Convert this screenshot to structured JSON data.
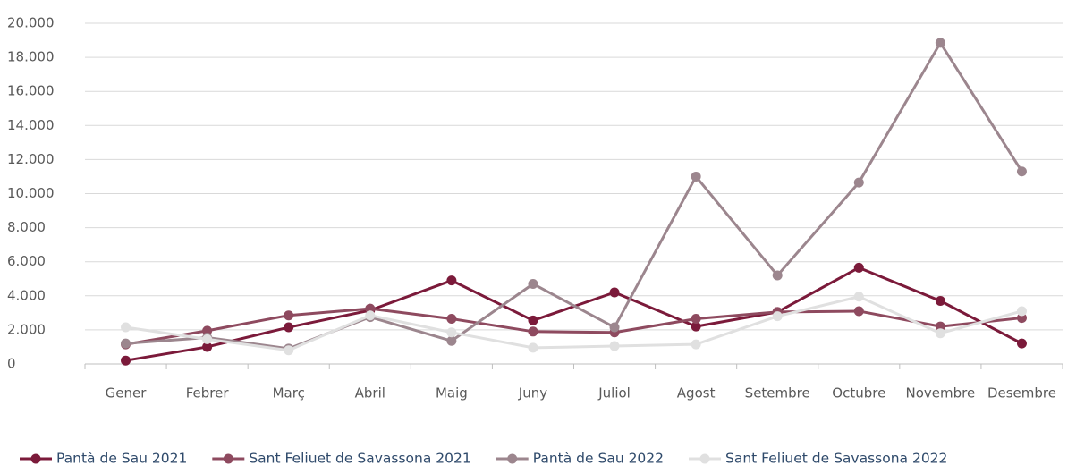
{
  "chart_data": {
    "type": "line",
    "categories": [
      "Gener",
      "Febrer",
      "Març",
      "Abril",
      "Maig",
      "Juny",
      "Juliol",
      "Agost",
      "Setembre",
      "Octubre",
      "Novembre",
      "Desembre"
    ],
    "series": [
      {
        "name": "Pantà de Sau 2021",
        "color": "#7b1a3a",
        "values": [
          200,
          1000,
          2150,
          3150,
          4900,
          2550,
          4200,
          2200,
          3050,
          5650,
          3700,
          1200
        ]
      },
      {
        "name": "Sant Feliuet de Savassona 2021",
        "color": "#8e4a5f",
        "values": [
          1150,
          1950,
          2850,
          3250,
          2650,
          1900,
          1850,
          2650,
          3050,
          3100,
          2200,
          2700
        ]
      },
      {
        "name": "Pantà de Sau 2022",
        "color": "#9c868e",
        "values": [
          1200,
          1550,
          900,
          2750,
          1350,
          4700,
          2150,
          11000,
          5200,
          10650,
          18850,
          11300
        ]
      },
      {
        "name": "Sant Feliuet de Savassona 2022",
        "color": "#e0e0e0",
        "values": [
          2150,
          1450,
          800,
          2850,
          1850,
          950,
          1050,
          1150,
          2800,
          3950,
          1800,
          3100
        ]
      }
    ],
    "ylim": [
      0,
      20000
    ],
    "yticks": [
      0,
      {
        "value": 2000,
        "label": "2.000"
      },
      {
        "value": 4000,
        "label": "4.000"
      },
      {
        "value": 6000,
        "label": "6.000"
      },
      {
        "value": 8000,
        "label": "8.000"
      },
      {
        "value": 10000,
        "label": "10.000"
      },
      {
        "value": 12000,
        "label": "12.000"
      },
      {
        "value": 14000,
        "label": "14.000"
      },
      {
        "value": 16000,
        "label": "16.000"
      },
      {
        "value": 18000,
        "label": "18.000"
      },
      {
        "value": 20000,
        "label": "20.000"
      }
    ],
    "grid": true,
    "legend": "bottom"
  }
}
